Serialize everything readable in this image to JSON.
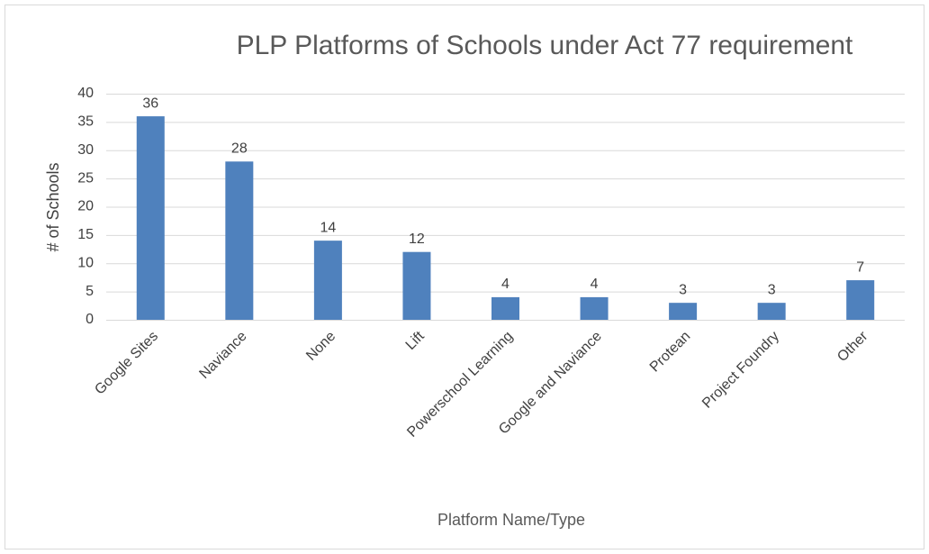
{
  "chart_data": {
    "type": "bar",
    "title": "PLP Platforms of Schools under Act 77 requirement",
    "x_label": "Platform Name/Type",
    "y_label": "# of Schools",
    "categories": [
      "Google Sites",
      "Naviance",
      "None",
      "Lift",
      "Powerschool Learning",
      "Google and Naviance",
      "Protean",
      "Project Foundry",
      "Other"
    ],
    "values": [
      36,
      28,
      14,
      12,
      4,
      4,
      3,
      3,
      7
    ],
    "color": "#4f81bd",
    "ylim": [
      0,
      40
    ],
    "yticks": [
      0,
      5,
      10,
      15,
      20,
      25,
      30,
      35,
      40
    ],
    "grid": true
  }
}
